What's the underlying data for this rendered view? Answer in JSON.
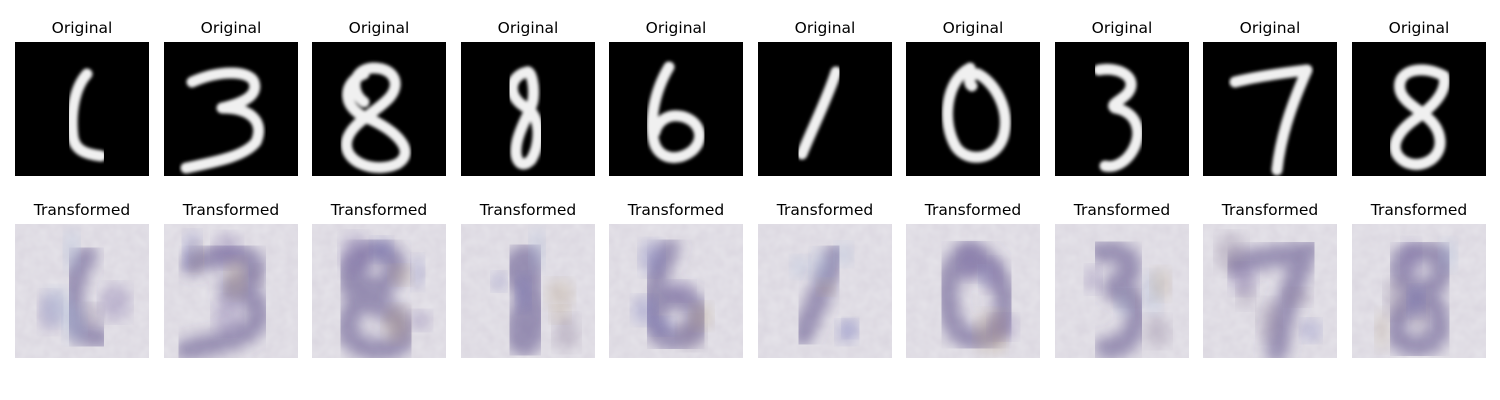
{
  "figure": {
    "rows": [
      {
        "row_title": "Original",
        "panels": [
          {
            "title": "Original",
            "digit": "1"
          },
          {
            "title": "Original",
            "digit": "3"
          },
          {
            "title": "Original",
            "digit": "8"
          },
          {
            "title": "Original",
            "digit": "8"
          },
          {
            "title": "Original",
            "digit": "6"
          },
          {
            "title": "Original",
            "digit": "1"
          },
          {
            "title": "Original",
            "digit": "0"
          },
          {
            "title": "Original",
            "digit": "3"
          },
          {
            "title": "Original",
            "digit": "7"
          },
          {
            "title": "Original",
            "digit": "8"
          }
        ]
      },
      {
        "row_title": "Transformed",
        "panels": [
          {
            "title": "Transformed"
          },
          {
            "title": "Transformed"
          },
          {
            "title": "Transformed"
          },
          {
            "title": "Transformed"
          },
          {
            "title": "Transformed"
          },
          {
            "title": "Transformed"
          },
          {
            "title": "Transformed"
          },
          {
            "title": "Transformed"
          },
          {
            "title": "Transformed"
          },
          {
            "title": "Transformed"
          }
        ]
      }
    ],
    "colors": {
      "background": "#ffffff",
      "original_bg": "#000000",
      "original_stroke": "#f0f0f0",
      "transformed_bg": "#e6e4ea",
      "transformed_ink": "#5a4a86"
    }
  }
}
